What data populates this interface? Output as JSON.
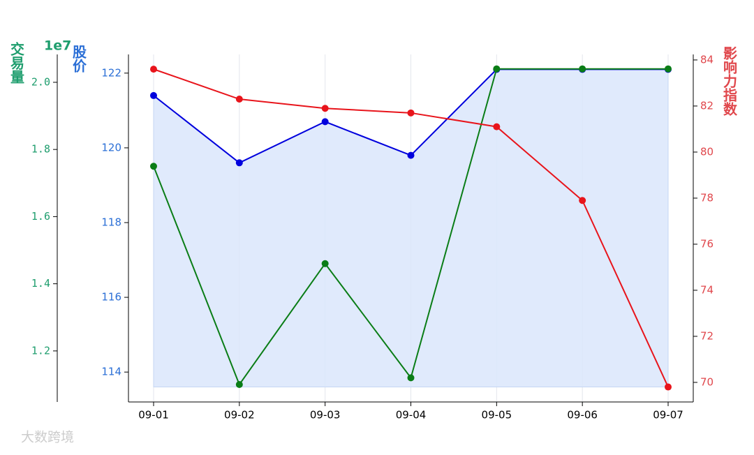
{
  "chart_data": {
    "type": "line",
    "categories": [
      "09-01",
      "09-02",
      "09-03",
      "09-04",
      "09-05",
      "09-06",
      "09-07"
    ],
    "series": [
      {
        "name": "股价",
        "color": "#0000dd",
        "axis": "y",
        "fill": "#dbe6fb",
        "values": [
          121.4,
          119.6,
          120.7,
          119.8,
          122.1,
          122.1,
          122.1
        ]
      },
      {
        "name": "交易量",
        "color": "#0a7d16",
        "axis": "y3",
        "values": [
          1.75,
          1.1,
          1.46,
          1.12,
          2.04,
          2.04,
          2.04
        ]
      },
      {
        "name": "影响力指数",
        "color": "#e8141b",
        "axis": "y2",
        "values": [
          83.6,
          82.3,
          81.9,
          81.7,
          81.1,
          77.9,
          69.8
        ]
      }
    ],
    "ylabel": "股价",
    "ylim": [
      113.2,
      122.5
    ],
    "yticks": [
      114,
      116,
      118,
      120,
      122
    ],
    "ycolor": "#2b6fd6",
    "y2label": "影响力指数",
    "y2lim": [
      69.15,
      84.24
    ],
    "y2ticks": [
      70,
      72,
      74,
      76,
      78,
      80,
      82,
      84
    ],
    "y2color": "#e0474c",
    "y3label": "交易量",
    "y3offset": "1e7",
    "y3lim": [
      1.048,
      2.083
    ],
    "y3ticks": [
      1.2,
      1.4,
      1.6,
      1.8,
      {
        "value": 2.0,
        "label": "2.0"
      }
    ],
    "y3color": "#1f9e6e",
    "grid": true,
    "watermark": "大数跨境"
  }
}
